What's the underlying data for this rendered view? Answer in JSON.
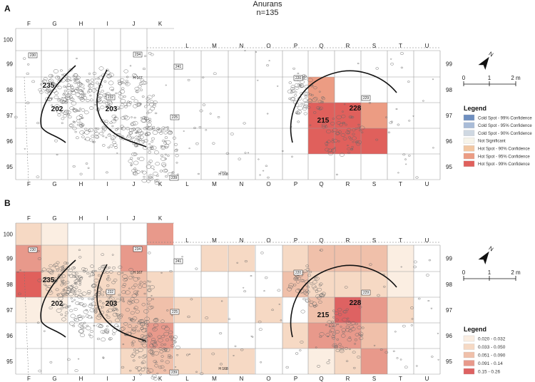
{
  "title": "Anurans",
  "subtitle": "n=135",
  "panels": [
    {
      "label": "A",
      "legend": {
        "title": "Legend",
        "entries": [
          {
            "label": "Cold Spot - 99% Confidence",
            "color": "#6f8fc0"
          },
          {
            "label": "Cold Spot - 95% Confidence",
            "color": "#a9bcd8"
          },
          {
            "label": "Cold Spot - 90% Confidence",
            "color": "#cfd8e2"
          },
          {
            "label": "Not Significant",
            "color": "#f7f4ea"
          },
          {
            "label": "Hot Spot - 90% Confidence",
            "color": "#f3c7a2"
          },
          {
            "label": "Hot Spot - 95% Confidence",
            "color": "#ec9c83"
          },
          {
            "label": "Hot Spot - 99% Confidence",
            "color": "#e0605c"
          }
        ]
      }
    },
    {
      "label": "B",
      "legend": {
        "title": "Legend",
        "entries": [
          {
            "label": "0.020 - 0.032",
            "color": "#fbeee2"
          },
          {
            "label": "0.033 - 0.050",
            "color": "#f6d9c4"
          },
          {
            "label": "0.051 - 0.090",
            "color": "#f0c0aa"
          },
          {
            "label": "0.091 - 0.14",
            "color": "#e8998b"
          },
          {
            "label": "0.15 - 0.26",
            "color": "#de6262"
          }
        ]
      }
    }
  ],
  "grid": {
    "columns": [
      "F",
      "G",
      "H",
      "I",
      "J",
      "K",
      "L",
      "M",
      "N",
      "O",
      "P",
      "Q",
      "R",
      "S",
      "T",
      "U"
    ],
    "rows": [
      "100",
      "99",
      "98",
      "97",
      "96",
      "95"
    ]
  },
  "features": [
    "202",
    "203",
    "235",
    "215",
    "228"
  ],
  "tags": [
    "230",
    "232",
    "234",
    "241",
    "220",
    "225",
    "229",
    "239"
  ],
  "structures": [
    "H 167",
    "H 168"
  ],
  "scale": {
    "ticks": [
      "0",
      "1",
      "2 m"
    ]
  },
  "north": "N",
  "cells_a": [
    {
      "col": "Q",
      "row": "98",
      "color": "#ec9c83"
    },
    {
      "col": "Q",
      "row": "97",
      "color": "#e0605c"
    },
    {
      "col": "R",
      "row": "97",
      "color": "#e0605c"
    },
    {
      "col": "S",
      "row": "97",
      "color": "#ec9c83"
    },
    {
      "col": "Q",
      "row": "96",
      "color": "#e0605c"
    },
    {
      "col": "R",
      "row": "96",
      "color": "#e0605c"
    },
    {
      "col": "S",
      "row": "96",
      "color": "#e0605c"
    }
  ],
  "cells_b": [
    {
      "col": "F",
      "row": "100",
      "color": "#f6d9c4"
    },
    {
      "col": "G",
      "row": "100",
      "color": "#fbeee2"
    },
    {
      "col": "K",
      "row": "100",
      "color": "#e8998b"
    },
    {
      "col": "F",
      "row": "99",
      "color": "#e8998b"
    },
    {
      "col": "G",
      "row": "99",
      "color": "#f6d9c4"
    },
    {
      "col": "H",
      "row": "99",
      "color": "#fbeee2"
    },
    {
      "col": "I",
      "row": "99",
      "color": "#fbeee2"
    },
    {
      "col": "J",
      "row": "99",
      "color": "#e8998b"
    },
    {
      "col": "M",
      "row": "99",
      "color": "#f6d9c4"
    },
    {
      "col": "N",
      "row": "99",
      "color": "#f6d9c4"
    },
    {
      "col": "P",
      "row": "99",
      "color": "#f6d9c4"
    },
    {
      "col": "Q",
      "row": "99",
      "color": "#f0c0aa"
    },
    {
      "col": "R",
      "row": "99",
      "color": "#f0c0aa"
    },
    {
      "col": "S",
      "row": "99",
      "color": "#f0c0aa"
    },
    {
      "col": "T",
      "row": "99",
      "color": "#fbeee2"
    },
    {
      "col": "F",
      "row": "98",
      "color": "#e0605c"
    },
    {
      "col": "G",
      "row": "98",
      "color": "#f6d9c4"
    },
    {
      "col": "H",
      "row": "98",
      "color": "#fbeee2"
    },
    {
      "col": "I",
      "row": "98",
      "color": "#f6d9c4"
    },
    {
      "col": "J",
      "row": "98",
      "color": "#f0c0aa"
    },
    {
      "col": "K",
      "row": "98",
      "color": "#f6d9c4"
    },
    {
      "col": "P",
      "row": "98",
      "color": "#f0c0aa"
    },
    {
      "col": "Q",
      "row": "98",
      "color": "#f6d9c4"
    },
    {
      "col": "R",
      "row": "98",
      "color": "#f6d9c4"
    },
    {
      "col": "S",
      "row": "98",
      "color": "#f6d9c4"
    },
    {
      "col": "T",
      "row": "98",
      "color": "#fbeee2"
    },
    {
      "col": "F",
      "row": "97",
      "color": "#fbeee2"
    },
    {
      "col": "G",
      "row": "97",
      "color": "#fbeee2"
    },
    {
      "col": "I",
      "row": "97",
      "color": "#f6d9c4"
    },
    {
      "col": "J",
      "row": "97",
      "color": "#f0c0aa"
    },
    {
      "col": "K",
      "row": "97",
      "color": "#f0c0aa"
    },
    {
      "col": "L",
      "row": "97",
      "color": "#f6d9c4"
    },
    {
      "col": "M",
      "row": "97",
      "color": "#f6d9c4"
    },
    {
      "col": "O",
      "row": "97",
      "color": "#f6d9c4"
    },
    {
      "col": "Q",
      "row": "97",
      "color": "#f0c0aa"
    },
    {
      "col": "R",
      "row": "97",
      "color": "#de6262"
    },
    {
      "col": "S",
      "row": "97",
      "color": "#e8998b"
    },
    {
      "col": "T",
      "row": "97",
      "color": "#f6d9c4"
    },
    {
      "col": "J",
      "row": "96",
      "color": "#f0c0aa"
    },
    {
      "col": "K",
      "row": "96",
      "color": "#e8998b"
    },
    {
      "col": "P",
      "row": "96",
      "color": "#f6d9c4"
    },
    {
      "col": "Q",
      "row": "96",
      "color": "#e8998b"
    },
    {
      "col": "R",
      "row": "96",
      "color": "#e8998b"
    },
    {
      "col": "S",
      "row": "96",
      "color": "#f0c0aa"
    },
    {
      "col": "J",
      "row": "95",
      "color": "#f6d9c4"
    },
    {
      "col": "K",
      "row": "95",
      "color": "#f0c0aa"
    },
    {
      "col": "L",
      "row": "95",
      "color": "#f6d9c4"
    },
    {
      "col": "M",
      "row": "95",
      "color": "#f6d9c4"
    },
    {
      "col": "N",
      "row": "95",
      "color": "#f6d9c4"
    },
    {
      "col": "Q",
      "row": "95",
      "color": "#fbeee2"
    },
    {
      "col": "R",
      "row": "95",
      "color": "#f6d9c4"
    },
    {
      "col": "S",
      "row": "95",
      "color": "#e8998b"
    }
  ]
}
